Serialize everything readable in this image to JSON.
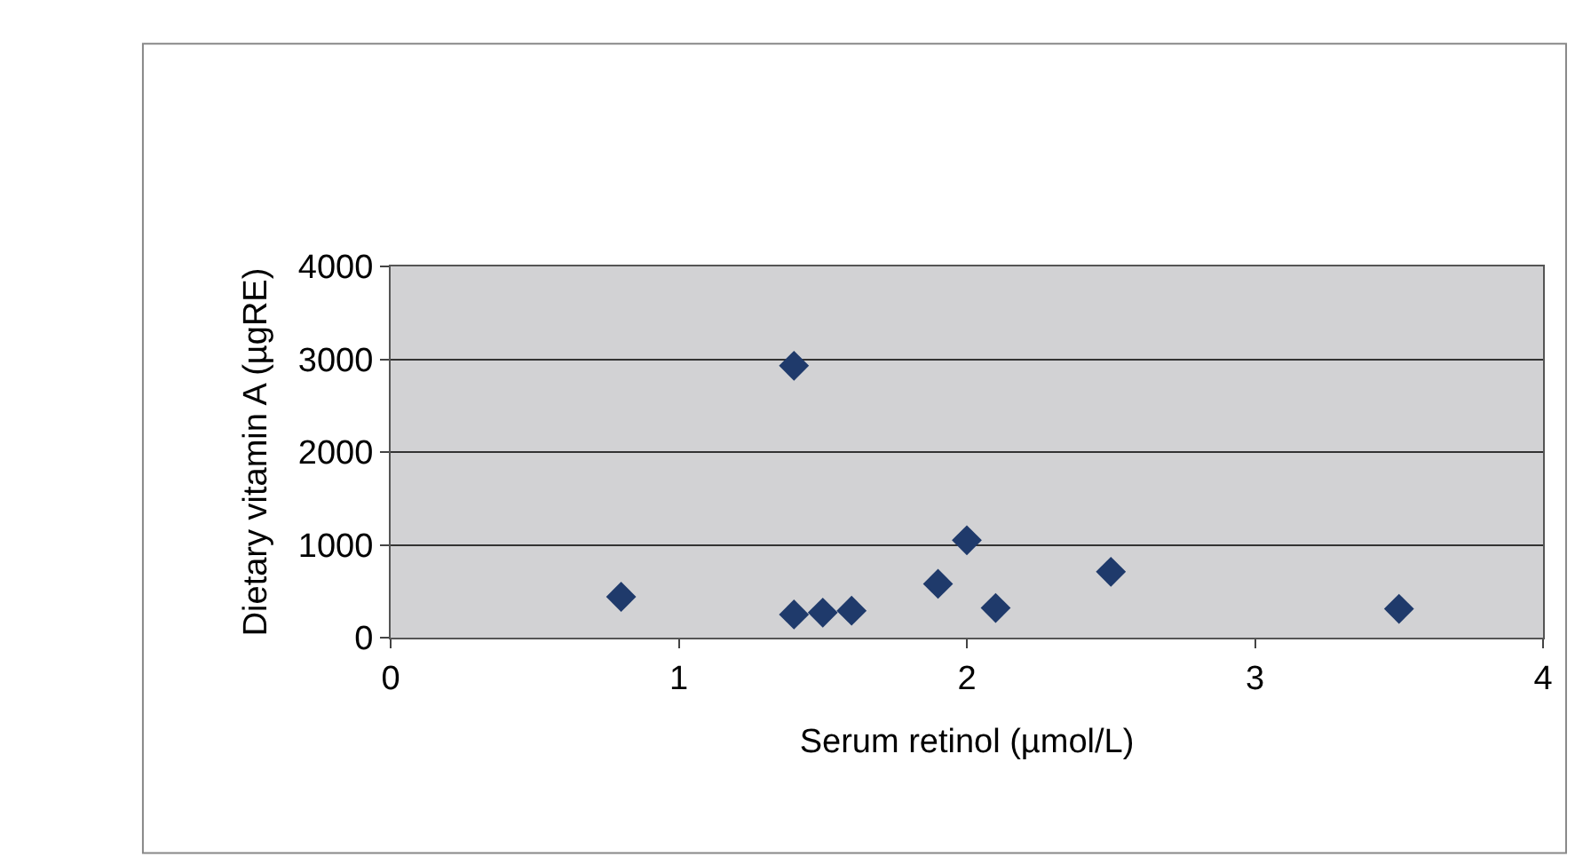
{
  "chart_data": {
    "type": "scatter",
    "xlabel": "Serum retinol (µmol/L)",
    "ylabel": "Dietary vitamin A (µgRE)",
    "x": [
      0.8,
      1.4,
      1.4,
      1.5,
      1.6,
      1.9,
      2.0,
      2.1,
      2.5,
      3.5
    ],
    "values": [
      440,
      2930,
      250,
      270,
      290,
      580,
      1050,
      320,
      710,
      310
    ],
    "color": "#1f3a6b",
    "marker": "diamond",
    "xlim": [
      0,
      4
    ],
    "xticks": [
      0,
      1,
      2,
      3,
      4
    ],
    "ylim": [
      0,
      4000
    ],
    "yticks": [
      0,
      1000,
      2000,
      3000,
      4000
    ],
    "grid": "y",
    "legend": false
  }
}
